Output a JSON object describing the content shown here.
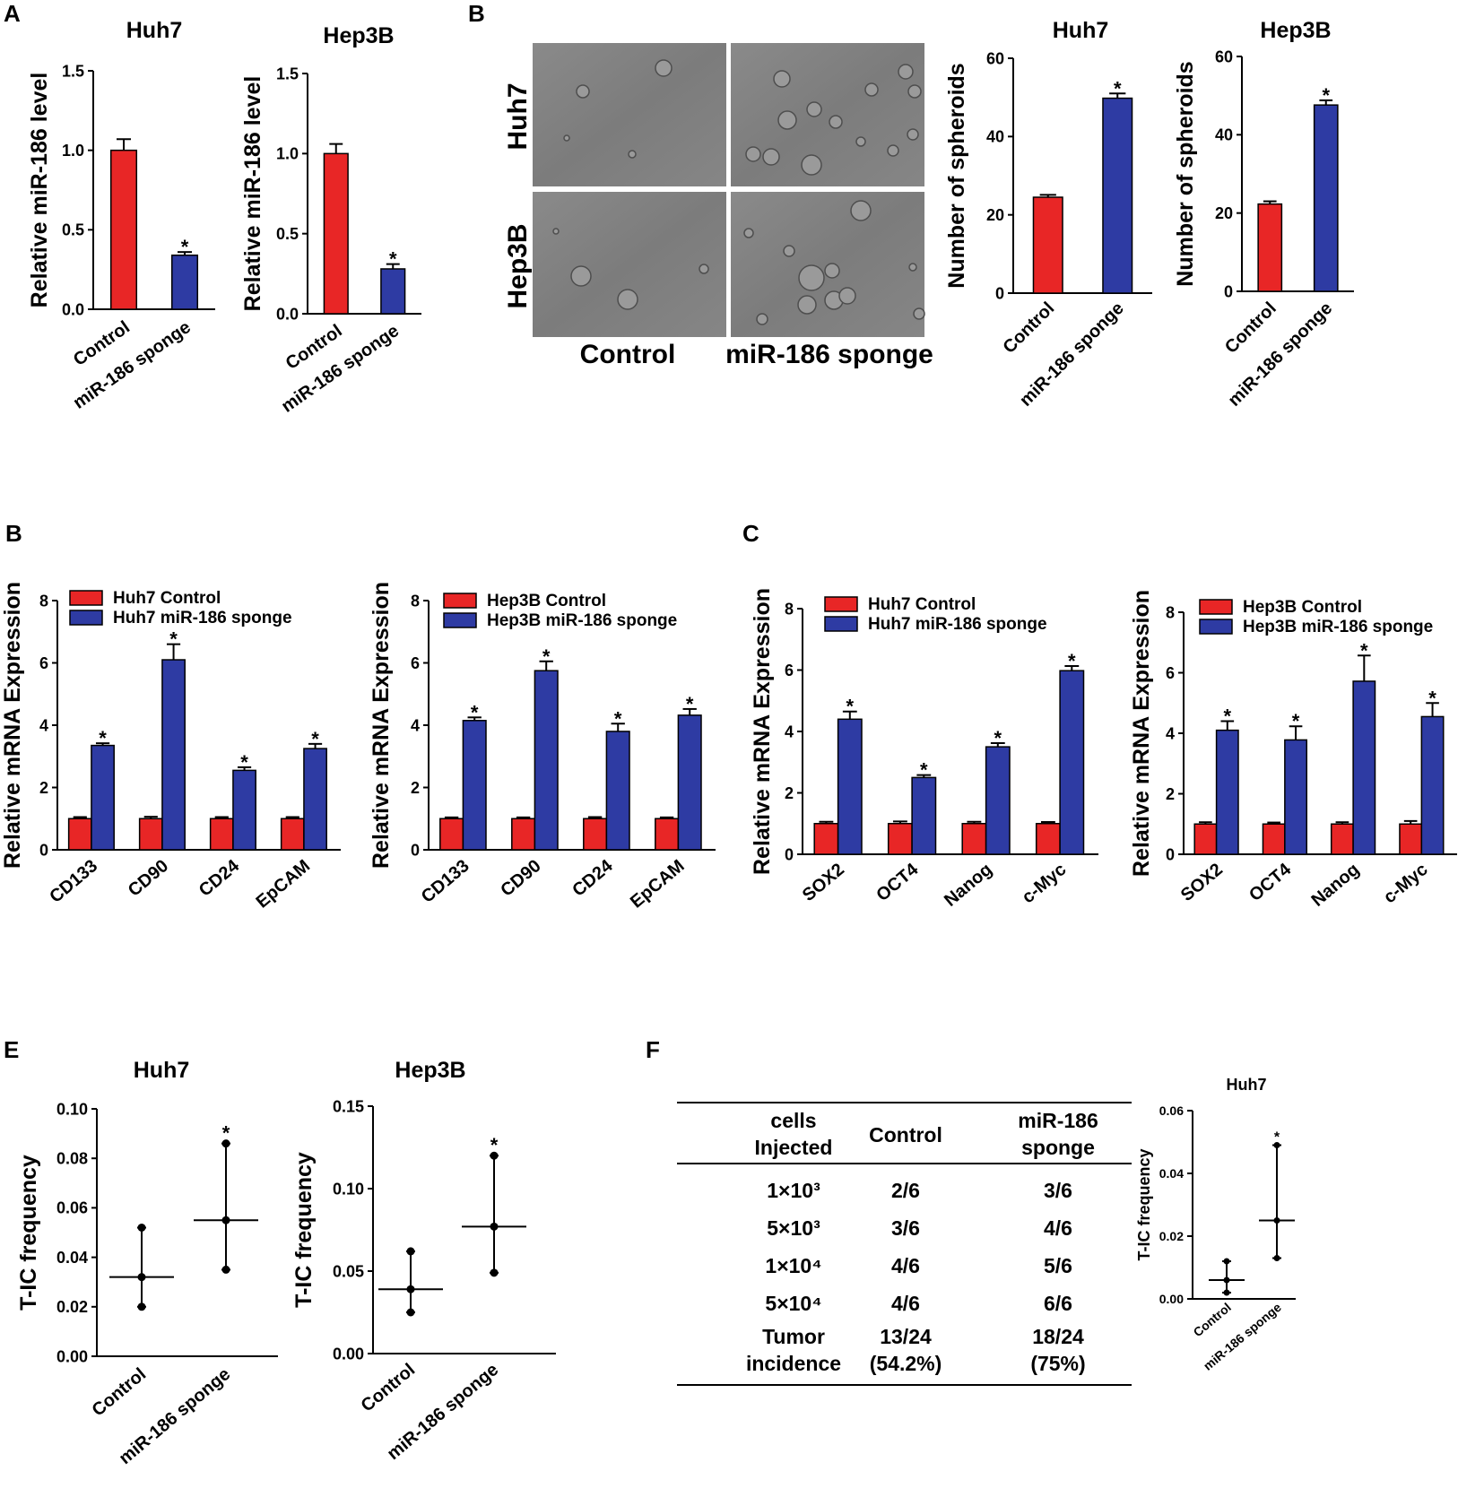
{
  "panel_labels": [
    "A",
    "B",
    "B",
    "C",
    "E",
    "F"
  ],
  "colors": {
    "control": "#e82626",
    "sponge": "#2e3ba3",
    "axis": "#000000"
  },
  "micrograph": {
    "row_labels": [
      "Huh7",
      "Hep3B"
    ],
    "col_labels": [
      "Control",
      "miR-186 sponge"
    ]
  },
  "table": {
    "headers": [
      "cells\nInjected",
      "Control",
      "miR-186\nsponge"
    ],
    "rows": [
      [
        "1×10³",
        "2/6",
        "3/6"
      ],
      [
        "5×10³",
        "3/6",
        "4/6"
      ],
      [
        "1×10⁴",
        "4/6",
        "5/6"
      ],
      [
        "5×10⁴",
        "4/6",
        "6/6"
      ],
      [
        "Tumor\nincidence",
        "13/24\n(54.2%)",
        "18/24\n(75%)"
      ]
    ]
  },
  "chart_data": [
    {
      "id": "A1",
      "type": "bar",
      "title": "Huh7",
      "ylabel": "Relative miR-186 level",
      "ylim": [
        0,
        1.5
      ],
      "yticks": [
        0.0,
        0.5,
        1.0,
        1.5
      ],
      "categories": [
        "Control",
        "miR-186 sponge"
      ],
      "values": [
        1.0,
        0.34
      ],
      "errors": [
        0.07,
        0.02
      ],
      "significant": [
        false,
        true
      ]
    },
    {
      "id": "A2",
      "type": "bar",
      "title": "Hep3B",
      "ylabel": "Relative miR-186 level",
      "ylim": [
        0,
        1.5
      ],
      "yticks": [
        0.0,
        0.5,
        1.0,
        1.5
      ],
      "categories": [
        "Control",
        "miR-186 sponge"
      ],
      "values": [
        1.0,
        0.28
      ],
      "errors": [
        0.06,
        0.03
      ],
      "significant": [
        false,
        true
      ]
    },
    {
      "id": "B1",
      "type": "bar",
      "title": "Huh7",
      "ylabel": "Number of spheroids",
      "ylim": [
        0,
        60
      ],
      "yticks": [
        0,
        20,
        40,
        60
      ],
      "categories": [
        "Control",
        "miR-186 sponge"
      ],
      "values": [
        24.5,
        49.8
      ],
      "errors": [
        0.6,
        1.2
      ],
      "significant": [
        false,
        true
      ]
    },
    {
      "id": "B2",
      "type": "bar",
      "title": "Hep3B",
      "ylabel": "Number of spheroids",
      "ylim": [
        0,
        60
      ],
      "yticks": [
        0,
        20,
        40,
        60
      ],
      "categories": [
        "Control",
        "miR-186 sponge"
      ],
      "values": [
        22.3,
        47.6
      ],
      "errors": [
        0.7,
        1.2
      ],
      "significant": [
        false,
        true
      ]
    },
    {
      "id": "B3",
      "type": "bar",
      "ylabel": "Relative mRNA Expression",
      "ylim": [
        0,
        8
      ],
      "yticks": [
        0,
        2,
        4,
        6,
        8
      ],
      "categories": [
        "CD133",
        "CD90",
        "CD24",
        "EpCAM"
      ],
      "series": [
        {
          "name": "Huh7 Control",
          "values": [
            1.0,
            1.0,
            1.0,
            1.0
          ],
          "errors": [
            0.05,
            0.06,
            0.05,
            0.05
          ]
        },
        {
          "name": "Huh7 miR-186 sponge",
          "values": [
            3.35,
            6.1,
            2.55,
            3.25
          ],
          "errors": [
            0.07,
            0.5,
            0.1,
            0.15
          ]
        }
      ]
    },
    {
      "id": "B4",
      "type": "bar",
      "ylabel": "Relative mRNA Expression",
      "ylim": [
        0,
        8
      ],
      "yticks": [
        0,
        2,
        4,
        6,
        8
      ],
      "categories": [
        "CD133",
        "CD90",
        "CD24",
        "EpCAM"
      ],
      "series": [
        {
          "name": "Hep3B Control",
          "values": [
            1.0,
            1.0,
            1.0,
            1.0
          ],
          "errors": [
            0.04,
            0.04,
            0.05,
            0.04
          ]
        },
        {
          "name": "Hep3B miR-186 sponge",
          "values": [
            4.15,
            5.75,
            3.8,
            4.32
          ],
          "errors": [
            0.1,
            0.3,
            0.25,
            0.2
          ]
        }
      ]
    },
    {
      "id": "C1",
      "type": "bar",
      "ylabel": "Relative mRNA Expression",
      "ylim": [
        0,
        8
      ],
      "yticks": [
        0,
        2,
        4,
        6,
        8
      ],
      "categories": [
        "SOX2",
        "OCT4",
        "Nanog",
        "c-Myc"
      ],
      "series": [
        {
          "name": "Huh7 Control",
          "values": [
            1.0,
            1.0,
            1.0,
            1.0
          ],
          "errors": [
            0.06,
            0.07,
            0.06,
            0.05
          ]
        },
        {
          "name": "Huh7 miR-186 sponge",
          "values": [
            4.4,
            2.5,
            3.5,
            5.98
          ],
          "errors": [
            0.25,
            0.08,
            0.12,
            0.15
          ]
        }
      ]
    },
    {
      "id": "C2",
      "type": "bar",
      "ylabel": "Relative mRNA Expression",
      "ylim": [
        0,
        8
      ],
      "yticks": [
        0,
        2,
        4,
        6,
        8
      ],
      "categories": [
        "SOX2",
        "OCT4",
        "Nanog",
        "c-Myc"
      ],
      "series": [
        {
          "name": "Hep3B Control",
          "values": [
            1.0,
            1.0,
            1.0,
            1.0
          ],
          "errors": [
            0.06,
            0.05,
            0.06,
            0.1
          ]
        },
        {
          "name": "Hep3B miR-186 sponge",
          "values": [
            4.1,
            3.78,
            5.72,
            4.55
          ],
          "errors": [
            0.3,
            0.45,
            0.85,
            0.45
          ]
        }
      ]
    },
    {
      "id": "E1",
      "type": "scatter",
      "title": "Huh7",
      "ylabel": "T-IC frequency",
      "ylim": [
        0,
        0.1
      ],
      "yticks": [
        0.0,
        0.02,
        0.04,
        0.06,
        0.08,
        0.1
      ],
      "ytick_labels": [
        "0.00",
        "0.02",
        "0.04",
        "0.06",
        "0.08",
        "0.10"
      ],
      "categories": [
        "Control",
        "miR-186 sponge"
      ],
      "estimate": [
        0.032,
        0.055
      ],
      "lower": [
        0.02,
        0.035
      ],
      "upper": [
        0.052,
        0.086
      ],
      "significant": [
        false,
        true
      ]
    },
    {
      "id": "E2",
      "type": "scatter",
      "title": "Hep3B",
      "ylabel": "T-IC frequency",
      "ylim": [
        0,
        0.15
      ],
      "yticks": [
        0.0,
        0.05,
        0.1,
        0.15
      ],
      "ytick_labels": [
        "0.00",
        "0.05",
        "0.10",
        "0.15"
      ],
      "categories": [
        "Control",
        "miR-186 sponge"
      ],
      "estimate": [
        0.039,
        0.077
      ],
      "lower": [
        0.025,
        0.049
      ],
      "upper": [
        0.062,
        0.12
      ],
      "significant": [
        false,
        true
      ]
    },
    {
      "id": "F1",
      "type": "scatter",
      "title": "Huh7",
      "ylabel": "T-IC frequency",
      "ylim": [
        0,
        0.06
      ],
      "yticks": [
        0.0,
        0.02,
        0.04,
        0.06
      ],
      "ytick_labels": [
        "0.00",
        "0.02",
        "0.04",
        "0.06"
      ],
      "categories": [
        "Control",
        "miR-186 sponge"
      ],
      "estimate": [
        0.006,
        0.025
      ],
      "lower": [
        0.002,
        0.013
      ],
      "upper": [
        0.012,
        0.049
      ],
      "significant": [
        false,
        true
      ]
    }
  ]
}
